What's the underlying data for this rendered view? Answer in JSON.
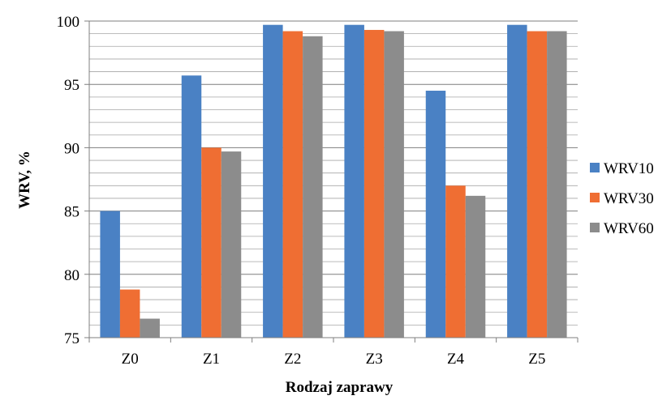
{
  "chart_data": {
    "type": "bar",
    "title": "",
    "xlabel": "Rodzaj zaprawy",
    "ylabel": "WRV, %",
    "categories": [
      "Z0",
      "Z1",
      "Z2",
      "Z3",
      "Z4",
      "Z5"
    ],
    "series": [
      {
        "name": "WRV10",
        "color": "#4a81c4",
        "values": [
          85.0,
          95.7,
          99.7,
          99.7,
          94.5,
          99.7
        ]
      },
      {
        "name": "WRV30",
        "color": "#ef6e33",
        "values": [
          78.8,
          90.0,
          99.2,
          99.3,
          87.0,
          99.2
        ]
      },
      {
        "name": "WRV60",
        "color": "#8c8c8c",
        "values": [
          76.5,
          89.7,
          98.8,
          99.2,
          86.2,
          99.2
        ]
      }
    ],
    "ylim": [
      75,
      100
    ],
    "yticks": [
      75,
      80,
      85,
      90,
      95,
      100
    ],
    "minor_step": 1,
    "grid": true,
    "legend": "right"
  }
}
